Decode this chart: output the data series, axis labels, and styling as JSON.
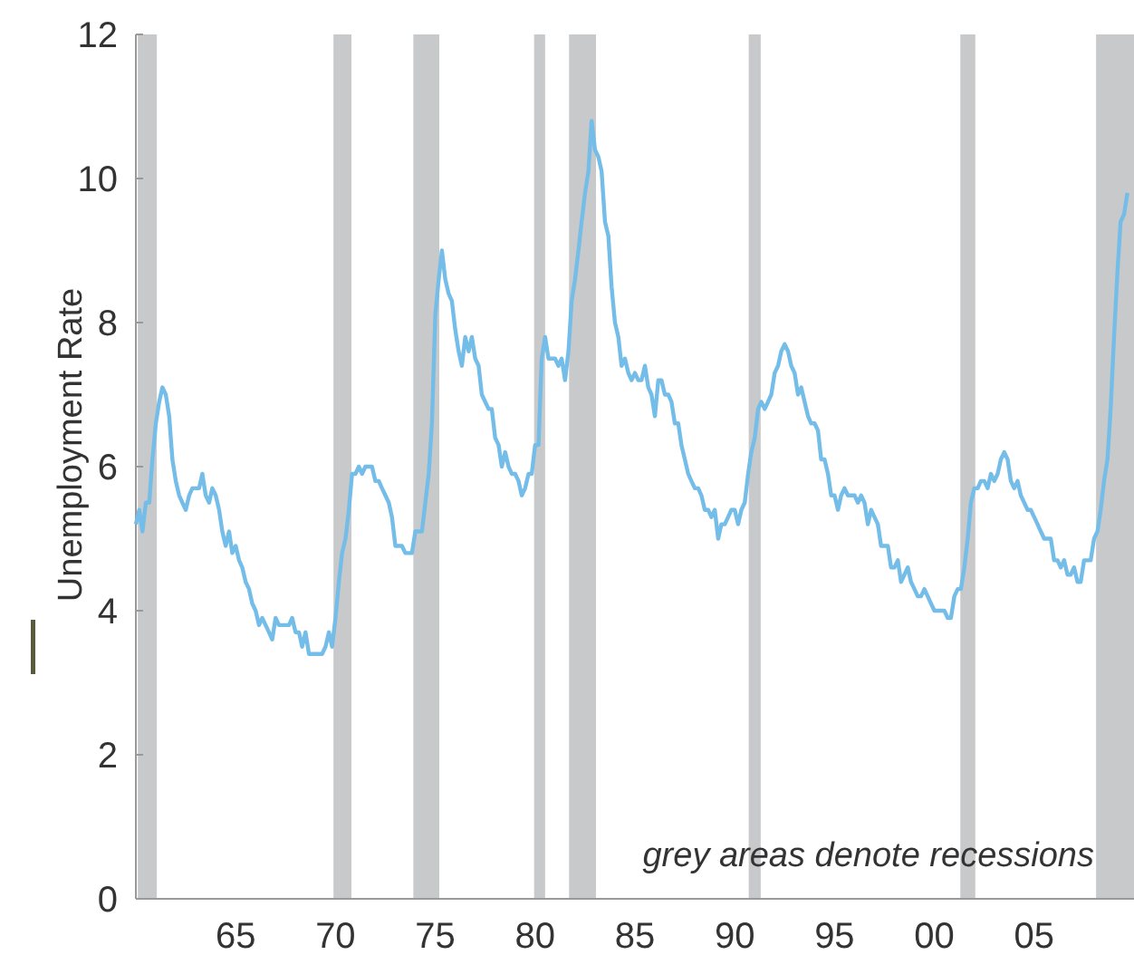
{
  "chart_data": {
    "type": "line",
    "ylabel": "Unemployment Rate",
    "annotations": [
      "grey areas denote recessions"
    ],
    "xlim": [
      1960,
      2010
    ],
    "ylim": [
      0,
      12
    ],
    "xticks": [
      {
        "value": 1965,
        "label": "65"
      },
      {
        "value": 1970,
        "label": "70"
      },
      {
        "value": 1975,
        "label": "75"
      },
      {
        "value": 1980,
        "label": "80"
      },
      {
        "value": 1985,
        "label": "85"
      },
      {
        "value": 1990,
        "label": "90"
      },
      {
        "value": 1995,
        "label": "95"
      },
      {
        "value": 2000,
        "label": "00"
      },
      {
        "value": 2005,
        "label": "05"
      }
    ],
    "yticks": [
      0,
      2,
      4,
      6,
      8,
      10,
      12
    ],
    "grid": false,
    "marker": "none",
    "line_style": "solid",
    "bands": [
      {
        "axis": "x",
        "from": 1960.1,
        "to": 1961.05,
        "color": "#c8c9cb"
      },
      {
        "axis": "x",
        "from": 1969.9,
        "to": 1970.8,
        "color": "#c8c9cb"
      },
      {
        "axis": "x",
        "from": 1973.9,
        "to": 1975.2,
        "color": "#c8c9cb"
      },
      {
        "axis": "x",
        "from": 1979.95,
        "to": 1980.5,
        "color": "#c8c9cb"
      },
      {
        "axis": "x",
        "from": 1981.7,
        "to": 1983.05,
        "color": "#c8c9cb"
      },
      {
        "axis": "x",
        "from": 1990.7,
        "to": 1991.3,
        "color": "#c8c9cb"
      },
      {
        "axis": "x",
        "from": 2001.3,
        "to": 2002.05,
        "color": "#c8c9cb"
      },
      {
        "axis": "x",
        "from": 2008.1,
        "to": 2010,
        "color": "#c8c9cb"
      }
    ],
    "x": [
      1960,
      1960.17,
      1960.33,
      1960.5,
      1960.67,
      1960.83,
      1961,
      1961.17,
      1961.33,
      1961.5,
      1961.67,
      1961.83,
      1962,
      1962.17,
      1962.33,
      1962.5,
      1962.67,
      1962.83,
      1963,
      1963.17,
      1963.33,
      1963.5,
      1963.67,
      1963.83,
      1964,
      1964.17,
      1964.33,
      1964.5,
      1964.67,
      1964.83,
      1965,
      1965.17,
      1965.33,
      1965.5,
      1965.67,
      1965.83,
      1966,
      1966.17,
      1966.33,
      1966.5,
      1966.67,
      1966.83,
      1967,
      1967.17,
      1967.33,
      1967.5,
      1967.67,
      1967.83,
      1968,
      1968.17,
      1968.33,
      1968.5,
      1968.67,
      1968.83,
      1969,
      1969.17,
      1969.33,
      1969.5,
      1969.67,
      1969.83,
      1970,
      1970.17,
      1970.33,
      1970.5,
      1970.67,
      1970.83,
      1971,
      1971.17,
      1971.33,
      1971.5,
      1971.67,
      1971.83,
      1972,
      1972.17,
      1972.33,
      1972.5,
      1972.67,
      1972.83,
      1973,
      1973.17,
      1973.33,
      1973.5,
      1973.67,
      1973.83,
      1974,
      1974.17,
      1974.33,
      1974.5,
      1974.67,
      1974.83,
      1975,
      1975.17,
      1975.33,
      1975.5,
      1975.67,
      1975.83,
      1976,
      1976.17,
      1976.33,
      1976.5,
      1976.67,
      1976.83,
      1977,
      1977.17,
      1977.33,
      1977.5,
      1977.67,
      1977.83,
      1978,
      1978.17,
      1978.33,
      1978.5,
      1978.67,
      1978.83,
      1979,
      1979.17,
      1979.33,
      1979.5,
      1979.67,
      1979.83,
      1980,
      1980.17,
      1980.33,
      1980.5,
      1980.67,
      1980.83,
      1981,
      1981.17,
      1981.33,
      1981.5,
      1981.67,
      1981.83,
      1982,
      1982.17,
      1982.33,
      1982.5,
      1982.67,
      1982.83,
      1983,
      1983.17,
      1983.33,
      1983.5,
      1983.67,
      1983.83,
      1984,
      1984.17,
      1984.33,
      1984.5,
      1984.67,
      1984.83,
      1985,
      1985.17,
      1985.33,
      1985.5,
      1985.67,
      1985.83,
      1986,
      1986.17,
      1986.33,
      1986.5,
      1986.67,
      1986.83,
      1987,
      1987.17,
      1987.33,
      1987.5,
      1987.67,
      1987.83,
      1988,
      1988.17,
      1988.33,
      1988.5,
      1988.67,
      1988.83,
      1989,
      1989.17,
      1989.33,
      1989.5,
      1989.67,
      1989.83,
      1990,
      1990.17,
      1990.33,
      1990.5,
      1990.67,
      1990.83,
      1991,
      1991.17,
      1991.33,
      1991.5,
      1991.67,
      1991.83,
      1992,
      1992.17,
      1992.33,
      1992.5,
      1992.67,
      1992.83,
      1993,
      1993.17,
      1993.33,
      1993.5,
      1993.67,
      1993.83,
      1994,
      1994.17,
      1994.33,
      1994.5,
      1994.67,
      1994.83,
      1995,
      1995.17,
      1995.33,
      1995.5,
      1995.67,
      1995.83,
      1996,
      1996.17,
      1996.33,
      1996.5,
      1996.67,
      1996.83,
      1997,
      1997.17,
      1997.33,
      1997.5,
      1997.67,
      1997.83,
      1998,
      1998.17,
      1998.33,
      1998.5,
      1998.67,
      1998.83,
      1999,
      1999.17,
      1999.33,
      1999.5,
      1999.67,
      1999.83,
      2000,
      2000.17,
      2000.33,
      2000.5,
      2000.67,
      2000.83,
      2001,
      2001.17,
      2001.33,
      2001.5,
      2001.67,
      2001.83,
      2002,
      2002.17,
      2002.33,
      2002.5,
      2002.67,
      2002.83,
      2003,
      2003.17,
      2003.33,
      2003.5,
      2003.67,
      2003.83,
      2004,
      2004.17,
      2004.33,
      2004.5,
      2004.67,
      2004.83,
      2005,
      2005.17,
      2005.33,
      2005.5,
      2005.67,
      2005.83,
      2006,
      2006.17,
      2006.33,
      2006.5,
      2006.67,
      2006.83,
      2007,
      2007.17,
      2007.33,
      2007.5,
      2007.67,
      2007.83,
      2008,
      2008.17,
      2008.33,
      2008.5,
      2008.67,
      2008.83,
      2009,
      2009.17,
      2009.33,
      2009.5,
      2009.67
    ],
    "series": [
      {
        "color": "#74bde8",
        "values": [
          5.2,
          5.4,
          5.1,
          5.5,
          5.5,
          6.1,
          6.6,
          6.9,
          7.1,
          7.0,
          6.7,
          6.1,
          5.8,
          5.6,
          5.5,
          5.4,
          5.6,
          5.7,
          5.7,
          5.7,
          5.9,
          5.6,
          5.5,
          5.7,
          5.6,
          5.4,
          5.1,
          4.9,
          5.1,
          4.8,
          4.9,
          4.7,
          4.6,
          4.4,
          4.3,
          4.1,
          4.0,
          3.8,
          3.9,
          3.8,
          3.7,
          3.6,
          3.9,
          3.8,
          3.8,
          3.8,
          3.8,
          3.9,
          3.7,
          3.7,
          3.5,
          3.7,
          3.4,
          3.4,
          3.4,
          3.4,
          3.4,
          3.5,
          3.7,
          3.5,
          3.9,
          4.4,
          4.8,
          5.0,
          5.4,
          5.9,
          5.9,
          6.0,
          5.9,
          6.0,
          6.0,
          6.0,
          5.8,
          5.8,
          5.7,
          5.6,
          5.5,
          5.3,
          4.9,
          4.9,
          4.9,
          4.8,
          4.8,
          4.8,
          5.1,
          5.1,
          5.1,
          5.5,
          5.9,
          6.6,
          8.1,
          8.6,
          9.0,
          8.6,
          8.4,
          8.3,
          7.9,
          7.6,
          7.4,
          7.8,
          7.6,
          7.8,
          7.5,
          7.4,
          7.0,
          6.9,
          6.8,
          6.8,
          6.4,
          6.3,
          6.0,
          6.2,
          6.0,
          5.9,
          5.9,
          5.8,
          5.6,
          5.7,
          5.9,
          5.9,
          6.3,
          6.3,
          7.5,
          7.8,
          7.5,
          7.5,
          7.5,
          7.4,
          7.5,
          7.2,
          7.6,
          8.3,
          8.6,
          9.0,
          9.4,
          9.8,
          10.1,
          10.8,
          10.4,
          10.3,
          10.1,
          9.4,
          9.2,
          8.5,
          8.0,
          7.8,
          7.4,
          7.5,
          7.3,
          7.2,
          7.3,
          7.2,
          7.2,
          7.4,
          7.1,
          7.0,
          6.7,
          7.2,
          7.2,
          7.0,
          7.0,
          6.9,
          6.6,
          6.6,
          6.3,
          6.1,
          5.9,
          5.8,
          5.7,
          5.7,
          5.6,
          5.4,
          5.4,
          5.3,
          5.4,
          5.0,
          5.2,
          5.2,
          5.3,
          5.4,
          5.4,
          5.2,
          5.4,
          5.5,
          5.9,
          6.2,
          6.4,
          6.8,
          6.9,
          6.8,
          6.9,
          7.0,
          7.3,
          7.4,
          7.6,
          7.7,
          7.6,
          7.4,
          7.3,
          7.0,
          7.1,
          6.9,
          6.7,
          6.6,
          6.6,
          6.5,
          6.1,
          6.1,
          5.9,
          5.6,
          5.6,
          5.4,
          5.6,
          5.7,
          5.6,
          5.6,
          5.6,
          5.5,
          5.6,
          5.5,
          5.2,
          5.4,
          5.3,
          5.2,
          4.9,
          4.9,
          4.9,
          4.6,
          4.6,
          4.7,
          4.4,
          4.5,
          4.6,
          4.4,
          4.3,
          4.2,
          4.2,
          4.3,
          4.2,
          4.1,
          4.0,
          4.0,
          4.0,
          4.0,
          3.9,
          3.9,
          4.2,
          4.3,
          4.3,
          4.6,
          5.0,
          5.5,
          5.7,
          5.7,
          5.8,
          5.8,
          5.7,
          5.9,
          5.8,
          5.9,
          6.1,
          6.2,
          6.1,
          5.8,
          5.7,
          5.8,
          5.6,
          5.5,
          5.4,
          5.4,
          5.3,
          5.2,
          5.1,
          5.0,
          5.0,
          5.0,
          4.7,
          4.7,
          4.6,
          4.7,
          4.5,
          4.5,
          4.6,
          4.4,
          4.4,
          4.7,
          4.7,
          4.7,
          5.0,
          5.1,
          5.4,
          5.8,
          6.1,
          6.8,
          7.8,
          8.7,
          9.4,
          9.5,
          9.8
        ]
      }
    ]
  }
}
